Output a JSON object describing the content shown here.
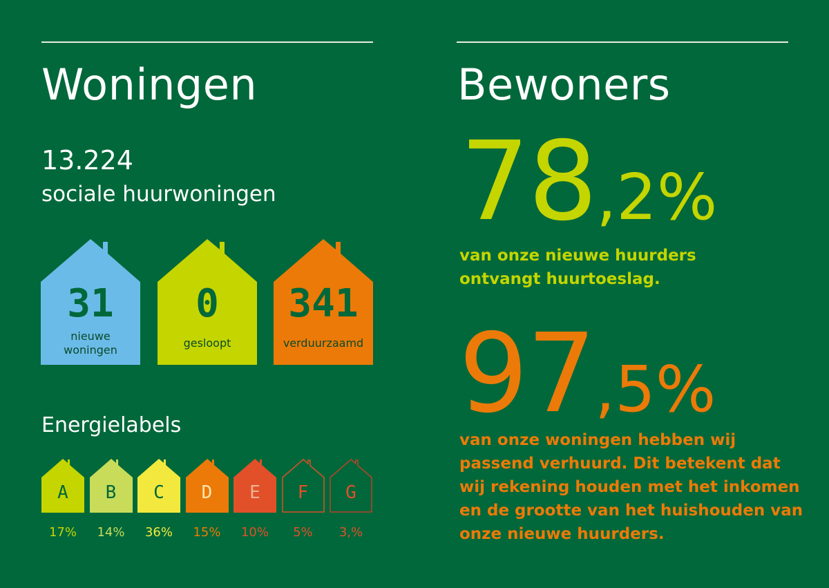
{
  "colors": {
    "background": "#00683a",
    "lime": "#c4d500",
    "orange": "#ec7a08",
    "blue": "#6bbbe9",
    "dark_green": "#00683a"
  },
  "woningen": {
    "title": "Woningen",
    "total": "13.224",
    "total_label": "sociale huurwoningen",
    "houses": [
      {
        "value": "31",
        "label_line1": "nieuwe",
        "label_line2": "woningen",
        "color": "#6bbbe9"
      },
      {
        "value": "0",
        "label_line1": "gesloopt",
        "label_line2": "",
        "color": "#c4d500"
      },
      {
        "value": "341",
        "label_line1": "verduurzaamd",
        "label_line2": "",
        "color": "#ec7a08"
      }
    ]
  },
  "energielabels": {
    "title": "Energielabels",
    "labels": [
      {
        "letter": "A",
        "percent": "17%",
        "fill": "#c4d500",
        "text_color": "#00683a",
        "pct_color": "#c4d500",
        "outline": false
      },
      {
        "letter": "B",
        "percent": "14%",
        "fill": "#c8dc5a",
        "text_color": "#00683a",
        "pct_color": "#c8dc5a",
        "outline": false
      },
      {
        "letter": "C",
        "percent": "36%",
        "fill": "#f3e93e",
        "text_color": "#00683a",
        "pct_color": "#f3e93e",
        "outline": false
      },
      {
        "letter": "D",
        "percent": "15%",
        "fill": "#ec7a08",
        "text_color": "#ffe6b0",
        "pct_color": "#ec7a08",
        "outline": false
      },
      {
        "letter": "E",
        "percent": "10%",
        "fill": "#e2502a",
        "text_color": "#f2b38f",
        "pct_color": "#e2502a",
        "outline": false
      },
      {
        "letter": "F",
        "percent": "5%",
        "fill": "none",
        "text_color": "#e2502a",
        "pct_color": "#e2502a",
        "outline": true,
        "stroke": "#d9502a"
      },
      {
        "letter": "G",
        "percent": "3,%",
        "fill": "none",
        "text_color": "#e2502a",
        "pct_color": "#e2502a",
        "outline": true,
        "stroke": "#b8442a"
      }
    ]
  },
  "bewoners": {
    "title": "Bewoners",
    "stat1": {
      "whole": "78",
      "decimal": ",2%",
      "line1": "van onze nieuwe huurders",
      "line2": "ontvangt huurtoeslag."
    },
    "stat2": {
      "whole": "97",
      "decimal": ",5%",
      "lines": [
        "van onze woningen hebben wij",
        "passend verhuurd. Dit betekent dat",
        "wij rekening houden met het inkomen",
        "en de grootte van het huishouden van",
        "onze nieuwe huurders."
      ]
    }
  }
}
